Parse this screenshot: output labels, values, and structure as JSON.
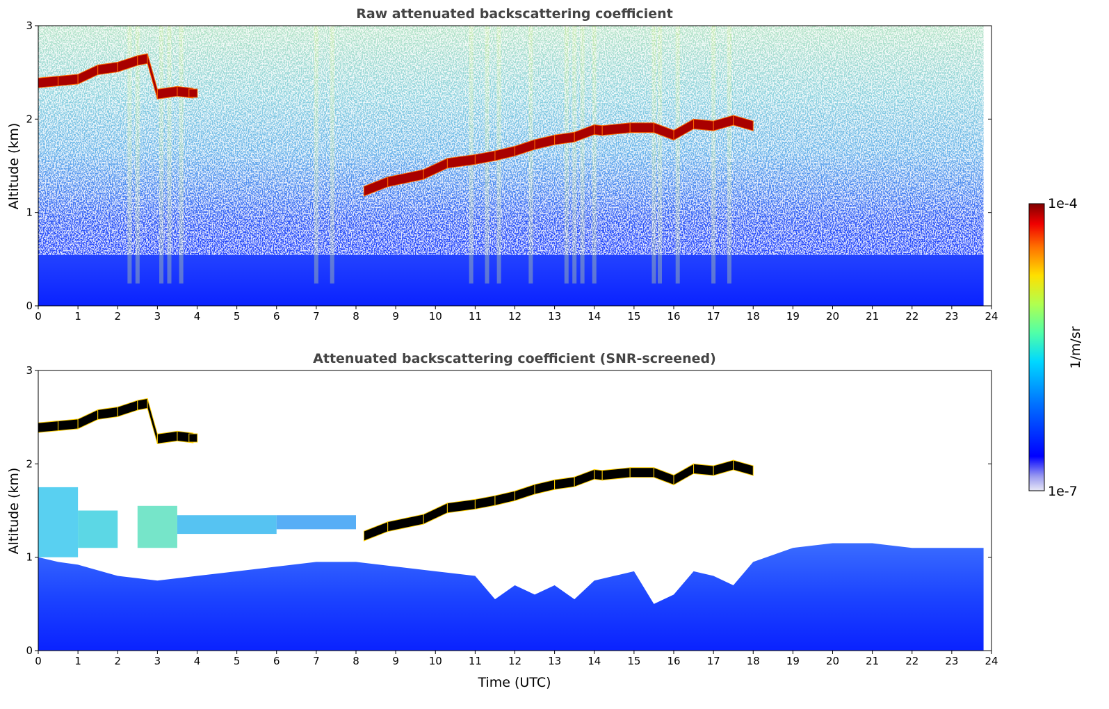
{
  "chart_data": {
    "type": "heatmap",
    "panels": [
      {
        "title": "Raw attenuated backscattering coefficient",
        "xlabel": "",
        "ylabel": "Altitude (km)",
        "xlim": [
          0,
          24
        ],
        "ylim": [
          0,
          3
        ],
        "xticks": [
          "0",
          "1",
          "2",
          "3",
          "4",
          "5",
          "6",
          "7",
          "8",
          "9",
          "10",
          "11",
          "12",
          "13",
          "14",
          "15",
          "16",
          "17",
          "18",
          "19",
          "20",
          "21",
          "22",
          "23",
          "24"
        ],
        "yticks": [
          "0",
          "1",
          "2",
          "3"
        ],
        "data_end_time": 23.8,
        "screened": false
      },
      {
        "title": "Attenuated backscattering coefficient (SNR-screened)",
        "xlabel": "Time (UTC)",
        "ylabel": "Altitude (km)",
        "xlim": [
          0,
          24
        ],
        "ylim": [
          0,
          3
        ],
        "xticks": [
          "0",
          "1",
          "2",
          "3",
          "4",
          "5",
          "6",
          "7",
          "8",
          "9",
          "10",
          "11",
          "12",
          "13",
          "14",
          "15",
          "16",
          "17",
          "18",
          "19",
          "20",
          "21",
          "22",
          "23",
          "24"
        ],
        "yticks": [
          "0",
          "1",
          "2",
          "3"
        ],
        "data_end_time": 23.8,
        "screened": true
      }
    ],
    "colorbar": {
      "label": "1/m/sr",
      "min_label": "1e-7",
      "max_label": "1e-4",
      "range": [
        1e-07,
        0.0001
      ],
      "scale": "log",
      "colormap": "jet"
    },
    "cloud_layer": {
      "description_times": [
        0.0,
        0.5,
        1.0,
        1.5,
        2.0,
        2.5,
        2.75,
        3.0,
        3.5,
        3.9,
        8.2,
        8.8,
        9.7,
        10.3,
        11.0,
        11.5,
        12.0,
        12.5,
        13.0,
        13.5,
        14.0,
        14.2,
        14.9,
        15.5,
        16.0,
        16.5,
        17.0,
        17.5,
        18.0
      ],
      "altitudes_km": [
        2.38,
        2.4,
        2.42,
        2.52,
        2.55,
        2.62,
        2.64,
        2.26,
        2.29,
        2.27,
        1.22,
        1.32,
        1.4,
        1.52,
        1.56,
        1.6,
        1.65,
        1.72,
        1.77,
        1.8,
        1.88,
        1.87,
        1.9,
        1.9,
        1.82,
        1.94,
        1.92,
        1.98,
        1.92
      ]
    },
    "colors": {
      "cloud_raw": "#a80000",
      "cloud_screened": "#000000",
      "background": "#ffffff"
    }
  }
}
